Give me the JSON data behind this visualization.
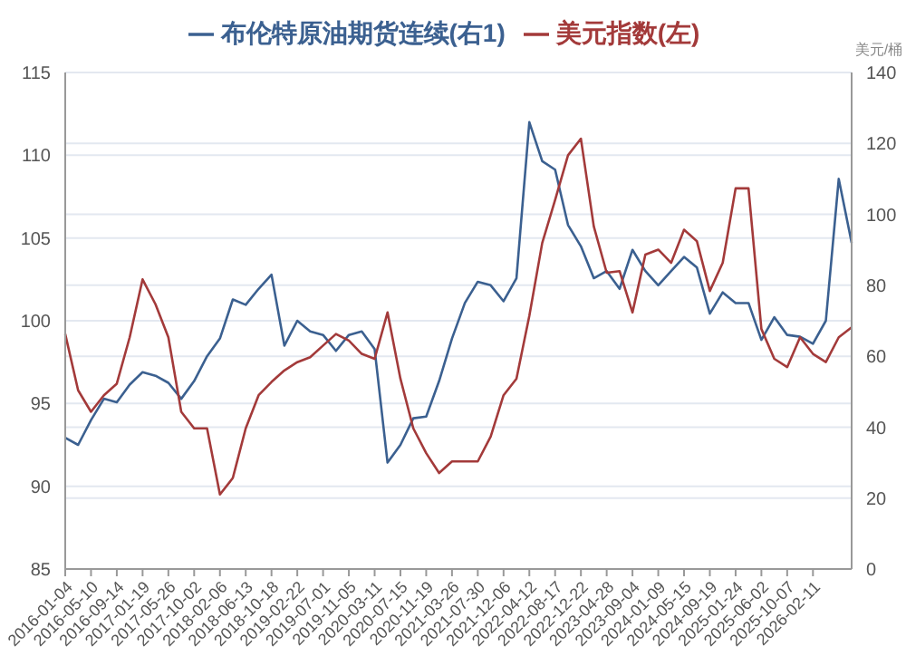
{
  "chart_data": {
    "type": "line",
    "categories": [
      "2016-01-04",
      null,
      "2016-05-10",
      null,
      "2016-09-14",
      null,
      "2017-01-19",
      null,
      "2017-05-26",
      null,
      "2017-10-02",
      null,
      "2018-02-06",
      null,
      "2018-06-13",
      null,
      "2018-10-18",
      null,
      "2019-02-22",
      null,
      "2019-07-01",
      null,
      "2019-11-05",
      null,
      "2020-03-11",
      null,
      "2020-07-15",
      null,
      "2020-11-19",
      null,
      "2021-03-26",
      null,
      "2021-07-30",
      null,
      "2021-12-06",
      null,
      "2022-04-12",
      null,
      "2022-08-17",
      null,
      "2022-12-22",
      null,
      "2023-04-28",
      null,
      "2023-09-04",
      null,
      "2024-01-09",
      null,
      "2024-05-15",
      null,
      "2024-09-19",
      null,
      "2025-01-24",
      null,
      "2025-06-02",
      null,
      "2025-10-07",
      null,
      "2026-02-11",
      null,
      null,
      null
    ],
    "series": [
      {
        "name": "布伦特原油期货连续(右1)",
        "color": "#3b6090",
        "axis": "y2",
        "values": [
          37,
          35,
          42,
          48,
          47,
          52,
          55.5,
          54.5,
          52.5,
          48,
          53,
          60,
          65,
          76,
          74.5,
          79,
          83,
          63,
          70,
          67,
          66,
          61.5,
          66,
          67,
          62,
          30,
          35,
          42.5,
          43,
          53,
          65,
          75,
          81,
          80,
          75.5,
          82,
          126,
          115,
          112.6,
          97,
          91,
          82,
          84,
          79,
          90,
          84,
          80,
          84,
          88,
          85,
          72,
          78,
          75,
          75,
          64.6,
          71,
          66,
          65.5,
          63.5,
          70,
          110,
          92
        ]
      },
      {
        "name": "美元指数(左)",
        "color": "#a33a3a",
        "values": [
          99.2,
          95.8,
          94.5,
          95.5,
          96.2,
          99,
          102.5,
          101,
          99,
          94.5,
          93.5,
          93.5,
          89.5,
          90.5,
          93.5,
          95.5,
          96.3,
          97,
          97.5,
          97.8,
          98.5,
          99.2,
          98.8,
          98,
          97.7,
          100.5,
          96.5,
          93.5,
          92,
          90.8,
          91.5,
          91.5,
          91.5,
          93,
          95.5,
          96.5,
          100.3,
          104.7,
          107.3,
          110,
          111,
          105.7,
          102.9,
          103,
          100.5,
          104,
          104.3,
          103.5,
          105.5,
          104.8,
          101.8,
          103.5,
          108,
          108,
          99.5,
          97.7,
          97.2,
          99,
          98,
          97.5,
          99,
          99.6
        ]
      }
    ],
    "ylim": [
      85,
      115
    ],
    "yticks": [
      85,
      90,
      95,
      100,
      105,
      110,
      115
    ],
    "y2lim": [
      0,
      140
    ],
    "y2ticks": [
      0,
      20,
      40,
      60,
      80,
      100,
      120,
      140
    ],
    "y2label": "美元/桶",
    "grid": "y",
    "legend": "top",
    "marker": "none",
    "line_style": "solid"
  }
}
